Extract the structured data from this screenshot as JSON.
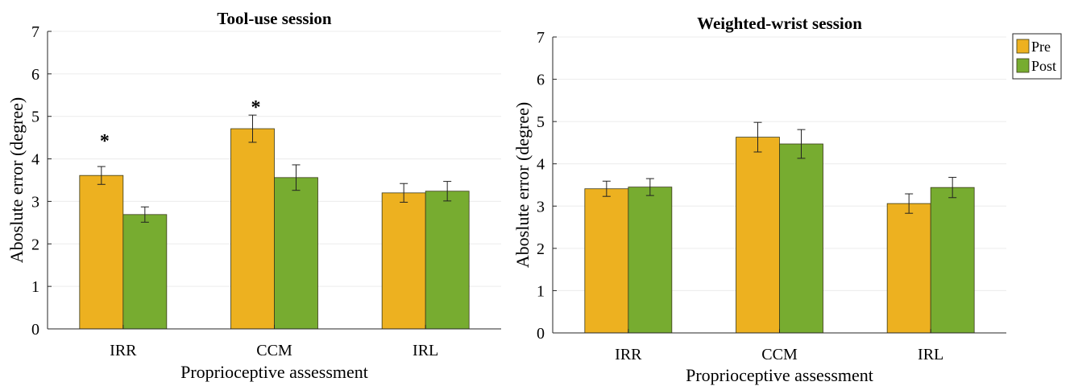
{
  "chart_data": [
    {
      "type": "bar",
      "title": "Tool-use session",
      "xlabel": "Proprioceptive assessment",
      "ylabel": "Aboslute error (degree)",
      "categories": [
        "IRR",
        "CCM",
        "IRL"
      ],
      "ylim": [
        0,
        7
      ],
      "yticks": [
        "0",
        "1",
        "2",
        "3",
        "4",
        "5",
        "6",
        "7"
      ],
      "grid": true,
      "series": [
        {
          "name": "Pre",
          "color": "#EDB120",
          "values": [
            3.61,
            4.71,
            3.2
          ],
          "errors": [
            0.21,
            0.32,
            0.22
          ]
        },
        {
          "name": "Post",
          "color": "#77AC30",
          "values": [
            2.69,
            3.56,
            3.24
          ],
          "errors": [
            0.18,
            0.3,
            0.23
          ]
        }
      ],
      "annotations": [
        {
          "text": "*",
          "category": "IRR",
          "y": 4.5
        },
        {
          "text": "*",
          "category": "CCM",
          "y": 5.3
        }
      ]
    },
    {
      "type": "bar",
      "title": "Weighted-wrist session",
      "xlabel": "Proprioceptive assessment",
      "ylabel": "Aboslute error (degree)",
      "categories": [
        "IRR",
        "CCM",
        "IRL"
      ],
      "ylim": [
        0,
        7
      ],
      "yticks": [
        "0",
        "1",
        "2",
        "3",
        "4",
        "5",
        "6",
        "7"
      ],
      "grid": true,
      "legend": {
        "placement": "top-right-outside",
        "entries": [
          "Pre",
          "Post"
        ]
      },
      "series": [
        {
          "name": "Pre",
          "color": "#EDB120",
          "values": [
            3.41,
            4.63,
            3.06
          ],
          "errors": [
            0.18,
            0.35,
            0.23
          ]
        },
        {
          "name": "Post",
          "color": "#77AC30",
          "values": [
            3.45,
            4.47,
            3.44
          ],
          "errors": [
            0.2,
            0.34,
            0.24
          ]
        }
      ],
      "annotations": []
    }
  ]
}
